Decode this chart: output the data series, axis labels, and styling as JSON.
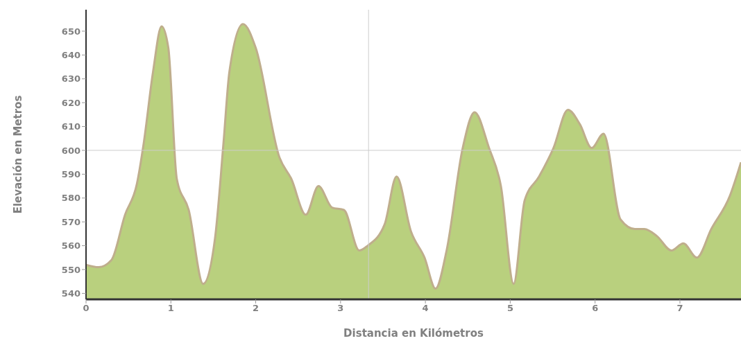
{
  "chart_data": {
    "type": "area",
    "xlabel": "Distancia en Kilómetros",
    "ylabel": "Elevación en Metros",
    "x": [
      0,
      0.15,
      0.3,
      0.46,
      0.6,
      0.68,
      0.79,
      0.89,
      0.97,
      1.07,
      1.21,
      1.38,
      1.52,
      1.62,
      1.69,
      1.85,
      2.0,
      2.28,
      2.42,
      2.59,
      2.74,
      2.9,
      3.04,
      3.22,
      3.32,
      3.52,
      3.66,
      3.83,
      3.99,
      4.12,
      4.25,
      4.44,
      4.58,
      4.75,
      4.89,
      5.04,
      5.17,
      5.34,
      5.51,
      5.68,
      5.82,
      5.96,
      6.1,
      6.3,
      6.47,
      6.58,
      6.73,
      6.9,
      7.04,
      7.2,
      7.37,
      7.59,
      7.72
    ],
    "series": [
      {
        "color": "#b9d07e",
        "values": [
          552,
          551,
          554,
          573,
          586,
          603,
          633,
          652,
          643,
          588,
          575,
          544,
          563,
          603,
          633,
          653,
          643,
          597,
          588,
          573,
          585,
          576,
          575,
          558,
          560,
          569,
          589,
          566,
          555,
          542,
          558,
          601,
          616,
          601,
          585,
          544,
          579,
          589,
          601,
          617,
          611,
          601,
          607,
          571,
          567,
          567,
          564,
          558,
          561,
          555,
          567,
          581,
          595
        ]
      }
    ],
    "xlim": [
      0,
      7.72
    ],
    "xticks": [
      0,
      1,
      2,
      3,
      4,
      5,
      6,
      7
    ],
    "ylim": [
      537.5,
      659
    ],
    "yticks": [
      540,
      550,
      560,
      570,
      580,
      590,
      600,
      610,
      620,
      630,
      640,
      650
    ],
    "grid": false,
    "legend": false,
    "ref_lines": [
      {
        "axis": "x",
        "value": 3.33,
        "color": "#cccccc"
      },
      {
        "axis": "y",
        "value": 600,
        "color": "#cccccc"
      }
    ]
  }
}
